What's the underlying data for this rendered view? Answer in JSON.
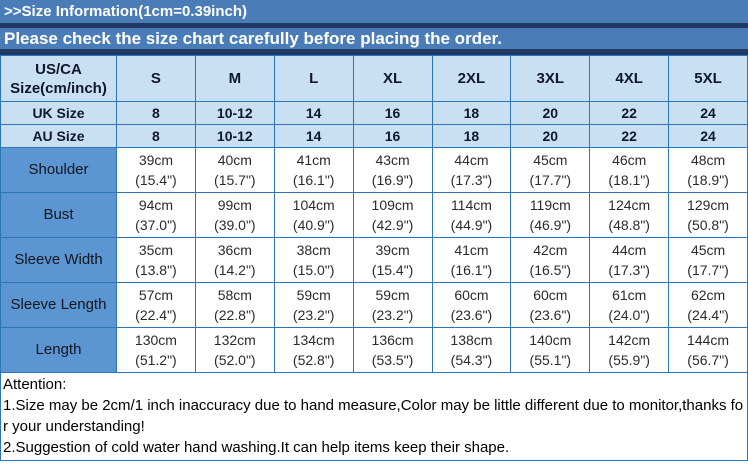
{
  "banner": {
    "title": ">>Size Information(1cm=0.39inch)",
    "subtitle": "Please check the size chart carefully before placing the order."
  },
  "table": {
    "header": {
      "corner": "US/CA Size(cm/inch)",
      "sizes": [
        "S",
        "M",
        "L",
        "XL",
        "2XL",
        "3XL",
        "4XL",
        "5XL"
      ]
    },
    "size_rows": [
      {
        "label": "UK Size",
        "values": [
          "8",
          "10-12",
          "14",
          "16",
          "18",
          "20",
          "22",
          "24"
        ]
      },
      {
        "label": "AU Size",
        "values": [
          "8",
          "10-12",
          "14",
          "16",
          "18",
          "20",
          "22",
          "24"
        ]
      }
    ],
    "measurement_rows": [
      {
        "label": "Shoulder",
        "values": [
          [
            "39cm",
            "(15.4\")"
          ],
          [
            "40cm",
            "(15.7\")"
          ],
          [
            "41cm",
            "(16.1\")"
          ],
          [
            "43cm",
            "(16.9\")"
          ],
          [
            "44cm",
            "(17.3\")"
          ],
          [
            "45cm",
            "(17.7\")"
          ],
          [
            "46cm",
            "(18.1\")"
          ],
          [
            "48cm",
            "(18.9\")"
          ]
        ]
      },
      {
        "label": "Bust",
        "values": [
          [
            "94cm",
            "(37.0\")"
          ],
          [
            "99cm",
            "(39.0\")"
          ],
          [
            "104cm",
            "(40.9\")"
          ],
          [
            "109cm",
            "(42.9\")"
          ],
          [
            "114cm",
            "(44.9\")"
          ],
          [
            "119cm",
            "(46.9\")"
          ],
          [
            "124cm",
            "(48.8\")"
          ],
          [
            "129cm",
            "(50.8\")"
          ]
        ]
      },
      {
        "label": "Sleeve Width",
        "values": [
          [
            "35cm",
            "(13.8\")"
          ],
          [
            "36cm",
            "(14.2\")"
          ],
          [
            "38cm",
            "(15.0\")"
          ],
          [
            "39cm",
            "(15.4\")"
          ],
          [
            "41cm",
            "(16.1\")"
          ],
          [
            "42cm",
            "(16.5\")"
          ],
          [
            "44cm",
            "(17.3\")"
          ],
          [
            "45cm",
            "(17.7\")"
          ]
        ]
      },
      {
        "label": "Sleeve Length",
        "values": [
          [
            "57cm",
            "(22.4\")"
          ],
          [
            "58cm",
            "(22.8\")"
          ],
          [
            "59cm",
            "(23.2\")"
          ],
          [
            "59cm",
            "(23.2\")"
          ],
          [
            "60cm",
            "(23.6\")"
          ],
          [
            "60cm",
            "(23.6\")"
          ],
          [
            "61cm",
            "(24.0\")"
          ],
          [
            "62cm",
            "(24.4\")"
          ]
        ]
      },
      {
        "label": "Length",
        "values": [
          [
            "130cm",
            "(51.2\")"
          ],
          [
            "132cm",
            "(52.0\")"
          ],
          [
            "134cm",
            "(52.8\")"
          ],
          [
            "136cm",
            "(53.5\")"
          ],
          [
            "138cm",
            "(54.3\")"
          ],
          [
            "140cm",
            "(55.1\")"
          ],
          [
            "142cm",
            "(55.9\")"
          ],
          [
            "144cm",
            "(56.7\")"
          ]
        ]
      }
    ]
  },
  "attention": {
    "heading": "Attention:",
    "notes": [
      "1.Size may be 2cm/1 inch inaccuracy due to hand measure,Color may be little different due to monitor,thanks for your understanding!",
      "2.Suggestion of cold water hand washing.It can help items keep their shape."
    ]
  },
  "colors": {
    "banner_blue": "#4a7db8",
    "separator_navy": "#1f3864",
    "header_light_blue": "#c9dff2",
    "row_label_blue": "#5b96d2",
    "cell_border_blue": "#2e75b6"
  }
}
